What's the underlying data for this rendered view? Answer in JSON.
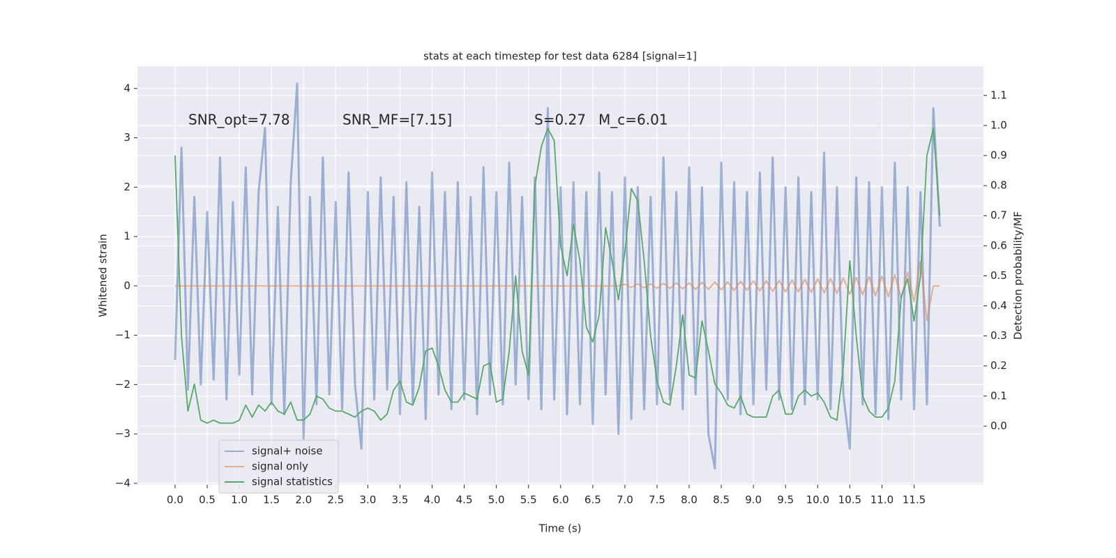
{
  "chart_data": {
    "type": "line",
    "title": "stats at each timestep for test data 6284 [signal=1]",
    "xlabel": "Time (s)",
    "ylabel": "Whitened strain",
    "y2label": "Detection probability/MF",
    "annotations": [
      "SNR_opt=7.78",
      "SNR_MF=[7.15]",
      "S=0.27",
      "M_c=6.01"
    ],
    "x": [
      0,
      0.1,
      0.2,
      0.3,
      0.4,
      0.5,
      0.6,
      0.7,
      0.8,
      0.9,
      1,
      1.1,
      1.2,
      1.3,
      1.4,
      1.5,
      1.6,
      1.7,
      1.8,
      1.9,
      2,
      2.1,
      2.2,
      2.3,
      2.4,
      2.5,
      2.6,
      2.7,
      2.8,
      2.9,
      3,
      3.1,
      3.2,
      3.3,
      3.4,
      3.5,
      3.6,
      3.7,
      3.8,
      3.9,
      4,
      4.1,
      4.2,
      4.3,
      4.4,
      4.5,
      4.6,
      4.7,
      4.8,
      4.9,
      5,
      5.1,
      5.2,
      5.3,
      5.4,
      5.5,
      5.6,
      5.7,
      5.8,
      5.9,
      6,
      6.1,
      6.2,
      6.3,
      6.4,
      6.5,
      6.6,
      6.7,
      6.8,
      6.9,
      7,
      7.1,
      7.2,
      7.3,
      7.4,
      7.5,
      7.6,
      7.7,
      7.8,
      7.9,
      8,
      8.1,
      8.2,
      8.3,
      8.4,
      8.5,
      8.6,
      8.7,
      8.8,
      8.9,
      9,
      9.1,
      9.2,
      9.3,
      9.4,
      9.5,
      9.6,
      9.7,
      9.8,
      9.9,
      10,
      10.1,
      10.2,
      10.3,
      10.4,
      10.5,
      10.6,
      10.7,
      10.8,
      10.9,
      11,
      11.1,
      11.2,
      11.3,
      11.4,
      11.5,
      11.6,
      11.7,
      11.8,
      11.9
    ],
    "series": [
      {
        "name": "signal+ noise",
        "color": "#4c72b0",
        "opacity": 0.5,
        "values": [
          -1.5,
          2.8,
          -2.1,
          1.8,
          -2.0,
          1.5,
          -1.9,
          2.6,
          -2.3,
          1.7,
          -1.8,
          2.4,
          -2.2,
          1.9,
          3.2,
          -2.4,
          1.6,
          -2.6,
          2.1,
          4.1,
          -3.1,
          1.8,
          -2.4,
          2.6,
          -2.2,
          1.7,
          -2.5,
          2.3,
          -2.0,
          -3.3,
          1.9,
          -2.3,
          2.2,
          -2.1,
          1.8,
          -2.6,
          2.1,
          -2.4,
          1.6,
          -2.7,
          2.3,
          -2.2,
          1.9,
          -2.5,
          2.1,
          -2.3,
          1.8,
          -2.6,
          2.4,
          -2.2,
          1.9,
          -2.4,
          2.5,
          -2.0,
          1.8,
          -2.3,
          2.2,
          -2.5,
          3.6,
          -2.3,
          2.0,
          -2.6,
          2.1,
          -2.4,
          1.9,
          -2.8,
          2.3,
          -2.2,
          1.9,
          -3.0,
          2.2,
          -2.7,
          2.0,
          -2.5,
          1.8,
          -2.4,
          2.6,
          -2.3,
          1.9,
          -2.5,
          2.4,
          -2.2,
          2.0,
          -3.0,
          -3.7,
          2.5,
          -2.3,
          2.1,
          -2.6,
          1.9,
          -2.4,
          2.3,
          -2.1,
          2.6,
          -2.3,
          2.0,
          -2.5,
          2.2,
          -2.4,
          1.9,
          -2.3,
          2.7,
          -2.5,
          2.0,
          -2.2,
          -3.3,
          2.2,
          -2.4,
          2.1,
          -2.6,
          2.0,
          -2.7,
          2.5,
          -2.3,
          2.0,
          -2.5,
          1.9,
          -2.4,
          3.6,
          1.2
        ]
      },
      {
        "name": "signal only",
        "color": "#dd8452",
        "opacity": 0.6,
        "values": [
          0,
          0,
          0,
          0,
          0,
          0,
          0,
          0,
          0,
          0,
          0,
          0,
          0,
          0,
          0,
          0,
          0,
          0,
          0,
          0,
          0,
          0,
          0,
          0,
          0,
          0,
          0,
          0,
          0,
          0,
          0,
          0,
          0,
          0,
          0,
          0,
          0,
          0,
          0,
          0,
          0,
          0,
          0,
          0,
          0,
          0,
          0,
          0,
          0,
          0,
          0,
          0,
          0,
          0,
          0,
          0,
          0,
          0,
          0,
          0,
          0,
          0,
          0,
          0,
          0,
          0,
          0,
          0,
          0,
          0,
          0.03,
          -0.03,
          0.04,
          -0.04,
          0.04,
          -0.05,
          0.05,
          -0.05,
          0.06,
          -0.06,
          0.06,
          -0.07,
          0.07,
          -0.07,
          0.08,
          -0.08,
          0.08,
          -0.09,
          0.09,
          -0.09,
          0.1,
          -0.1,
          0.1,
          -0.11,
          0.11,
          -0.12,
          0.12,
          -0.12,
          0.13,
          -0.13,
          0.14,
          -0.14,
          0.15,
          -0.15,
          0.16,
          -0.17,
          0.17,
          -0.18,
          0.19,
          -0.2,
          0.2,
          -0.22,
          0.23,
          -0.25,
          0.28,
          -0.32,
          0.5,
          -0.7,
          0,
          0
        ]
      },
      {
        "name": "signal statistics",
        "color": "#55a868",
        "opacity": 1,
        "axis": "y2",
        "values": [
          0.9,
          0.3,
          0.05,
          0.14,
          0.02,
          0.01,
          0.02,
          0.01,
          0.01,
          0.01,
          0.02,
          0.07,
          0.03,
          0.07,
          0.05,
          0.08,
          0.05,
          0.04,
          0.08,
          0.02,
          0.02,
          0.04,
          0.1,
          0.09,
          0.06,
          0.05,
          0.05,
          0.04,
          0.03,
          0.05,
          0.06,
          0.05,
          0.02,
          0.04,
          0.12,
          0.15,
          0.08,
          0.07,
          0.13,
          0.25,
          0.26,
          0.2,
          0.12,
          0.08,
          0.08,
          0.11,
          0.1,
          0.09,
          0.2,
          0.21,
          0.08,
          0.09,
          0.25,
          0.5,
          0.25,
          0.17,
          0.8,
          0.93,
          0.99,
          0.95,
          0.6,
          0.5,
          0.67,
          0.55,
          0.33,
          0.28,
          0.37,
          0.66,
          0.55,
          0.42,
          0.58,
          0.79,
          0.75,
          0.55,
          0.3,
          0.15,
          0.08,
          0.07,
          0.2,
          0.37,
          0.17,
          0.16,
          0.35,
          0.25,
          0.14,
          0.11,
          0.07,
          0.06,
          0.1,
          0.04,
          0.03,
          0.03,
          0.03,
          0.1,
          0.12,
          0.04,
          0.04,
          0.1,
          0.12,
          0.1,
          0.11,
          0.08,
          0.03,
          0.02,
          0.2,
          0.55,
          0.3,
          0.1,
          0.05,
          0.03,
          0.03,
          0.06,
          0.15,
          0.43,
          0.49,
          0.35,
          0.5,
          0.9,
          0.99,
          0.7
        ]
      }
    ],
    "xlim": [
      -0.586,
      12.58
    ],
    "ylim": [
      -4.03,
      4.45
    ],
    "y2lim": [
      -0.195,
      1.197
    ],
    "xticks": [
      {
        "value": 0,
        "label": "0.0"
      },
      0.5,
      {
        "value": 1,
        "label": "1.0"
      },
      1.5,
      {
        "value": 2,
        "label": "2.0"
      },
      2.5,
      {
        "value": 3,
        "label": "3.0"
      },
      3.5,
      {
        "value": 4,
        "label": "4.0"
      },
      4.5,
      {
        "value": 5,
        "label": "5.0"
      },
      5.5,
      {
        "value": 6,
        "label": "6.0"
      },
      6.5,
      {
        "value": 7,
        "label": "7.0"
      },
      7.5,
      {
        "value": 8,
        "label": "8.0"
      },
      8.5,
      {
        "value": 9,
        "label": "9.0"
      },
      9.5,
      {
        "value": 10,
        "label": "10.0"
      },
      10.5,
      {
        "value": 11,
        "label": "11.0"
      },
      11.5
    ],
    "yticks": [
      {
        "value": -4,
        "label": "−4"
      },
      {
        "value": -3,
        "label": "−3"
      },
      {
        "value": -2,
        "label": "−2"
      },
      {
        "value": -1,
        "label": "−1"
      },
      0,
      1,
      2,
      3,
      4
    ],
    "y2ticks": [
      {
        "value": 0,
        "label": "0.0"
      },
      0.1,
      0.2,
      0.3,
      0.4,
      0.5,
      0.6,
      0.7,
      0.8,
      0.9,
      {
        "value": 1,
        "label": "1.0"
      },
      1.1
    ],
    "grid": true,
    "legend": "lower left",
    "background": "#eaeaf2"
  }
}
